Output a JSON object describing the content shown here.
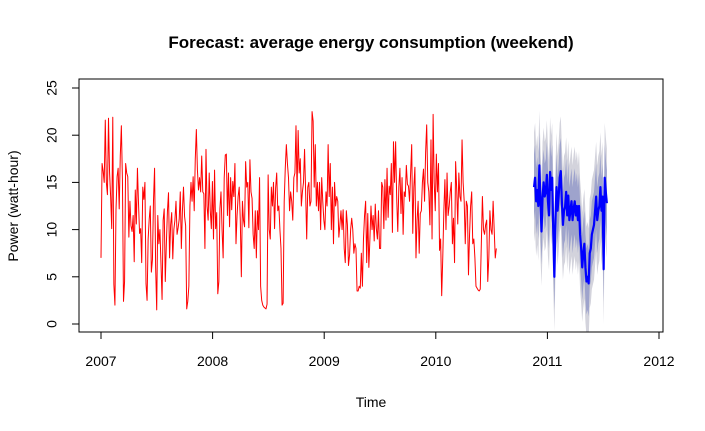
{
  "chart_data": {
    "type": "line",
    "title": "Forecast: average energy consumption (weekend)",
    "xlabel": "Time",
    "ylabel": "Power (watt-hour)",
    "xlim": [
      2007,
      2012
    ],
    "ylim": [
      0,
      25
    ],
    "x_ticks": [
      2007,
      2008,
      2009,
      2010,
      2011,
      2012
    ],
    "y_ticks": [
      0,
      5,
      10,
      15,
      20,
      25
    ],
    "grid": false,
    "legend": "none",
    "colors": {
      "history": "#ff0000",
      "forecast": "#0000ff",
      "band80": "#9ea3cc",
      "band95": "#d3d3dc"
    },
    "series": [
      {
        "role": "history",
        "x_start": 2007.0,
        "step": 0.0096,
        "values": [
          7.0,
          17.0,
          16.2,
          15.0,
          21.6,
          15.0,
          13.7,
          21.8,
          16.0,
          13.5,
          10.1,
          21.9,
          4.2,
          2.0,
          12.1,
          15.6,
          16.5,
          12.2,
          17.8,
          21.0,
          15.2,
          2.4,
          4.5,
          17.0,
          16.0,
          15.6,
          9.2,
          13.0,
          10.4,
          9.8,
          11.5,
          6.6,
          14.2,
          10.6,
          16.5,
          12.8,
          9.6,
          10.1,
          6.5,
          14.5,
          13.2,
          15.0,
          4.3,
          2.5,
          9.0,
          11.1,
          12.5,
          5.5,
          6.8,
          13.1,
          16.5,
          6.0,
          1.5,
          11.5,
          8.5,
          10.0,
          6.3,
          2.6,
          11.0,
          12.2,
          4.5,
          8.5,
          11.9,
          13.9,
          7.0,
          10.5,
          11.8,
          6.9,
          10.0,
          11.0,
          13.0,
          9.5,
          10.2,
          11.1,
          14.0,
          8.0,
          12.0,
          14.5,
          11.4,
          10.4,
          1.6,
          2.4,
          4.0,
          12.5,
          15.0,
          13.0,
          15.6,
          12.0,
          17.5,
          20.6,
          16.3,
          14.2,
          15.5,
          14.0,
          17.8,
          14.0,
          13.8,
          8.0,
          18.5,
          12.5,
          11.0,
          16.0,
          12.0,
          10.1,
          15.1,
          9.0,
          16.3,
          10.1,
          11.8,
          3.2,
          4.5,
          12.2,
          14.0,
          10.0,
          7.0,
          15.5,
          17.9,
          18.0,
          11.5,
          16.0,
          10.3,
          15.5,
          12.1,
          15.1,
          13.5,
          17.0,
          8.5,
          11.5,
          13.5,
          14.5,
          11.0,
          5.0,
          13.0,
          11.0,
          10.3,
          17.2,
          14.5,
          15.0,
          10.2,
          17.4,
          14.0,
          13.3,
          9.5,
          8.0,
          12.0,
          7.0,
          12.0,
          10.0,
          15.5,
          4.0,
          2.5,
          2.0,
          1.8,
          1.7,
          1.6,
          2.1,
          15.8,
          10.0,
          9.0,
          14.5,
          12.5,
          15.0,
          10.1,
          14.4,
          16.0,
          12.0,
          12.5,
          10.0,
          8.0,
          2.0,
          2.2,
          13.0,
          16.5,
          19.0,
          17.0,
          15.5,
          12.0,
          14.0,
          13.0,
          11.0,
          15.5,
          16.0,
          21.0,
          14.0,
          20.5,
          16.0,
          17.5,
          12.5,
          14.0,
          15.0,
          18.5,
          14.0,
          9.0,
          14.5,
          15.0,
          12.5,
          13.0,
          22.5,
          21.5,
          14.5,
          19.0,
          12.5,
          15.0,
          12.0,
          15.0,
          10.0,
          15.5,
          13.0,
          11.0,
          10.0,
          14.0,
          12.5,
          19.0,
          13.5,
          17.0,
          10.0,
          14.5,
          8.5,
          15.0,
          12.5,
          13.5,
          13.0,
          9.2,
          10.5,
          12.0,
          10.0,
          12.1,
          8.0,
          6.5,
          12.0,
          10.5,
          6.2,
          7.3,
          10.0,
          11.2,
          10.0,
          7.5,
          8.5,
          8.0,
          3.5,
          3.5,
          4.0,
          3.8,
          7.5,
          4.0,
          9.0,
          11.5,
          13.0,
          6.5,
          11.7,
          6.0,
          9.0,
          12.5,
          10.0,
          11.5,
          8.8,
          12.7,
          10.1,
          9.0,
          12.0,
          8.0,
          8.0,
          15.0,
          14.5,
          10.1,
          15.3,
          11.0,
          16.5,
          11.3,
          14.6,
          13.7,
          17.0,
          9.7,
          19.3,
          15.0,
          19.3,
          13.3,
          9.8,
          14.5,
          16.5,
          11.7,
          15.5,
          9.5,
          14.0,
          13.5,
          16.8,
          14.8,
          14.6,
          13.0,
          16.0,
          19.0,
          9.6,
          14.5,
          16.6,
          7.0,
          11.0,
          13.0,
          7.5,
          11.7,
          12.0,
          15.0,
          16.4,
          13.0,
          18.2,
          21.1,
          15.0,
          14.0,
          10.5,
          19.5,
          9.0,
          22.2,
          15.0,
          12.0,
          18.0,
          14.0,
          17.0,
          7.8,
          9.0,
          3.0,
          7.0,
          12.0,
          15.3,
          10.0,
          16.0,
          11.5,
          12.5,
          14.0,
          15.0,
          8.5,
          11.2,
          6.5,
          17.2,
          14.3,
          10.6,
          16.0,
          13.5,
          13.0,
          19.5,
          15.0,
          13.0,
          8.5,
          13.0,
          12.5,
          5.2,
          9.5,
          12.5,
          14.0,
          8.5,
          9.0,
          7.0,
          4.0,
          3.8,
          3.6,
          3.5,
          3.7,
          8.5,
          13.5,
          10.0,
          9.5,
          10.5,
          11.0,
          4.5,
          7.0,
          12.0,
          10.0,
          9.5,
          13.0,
          10.0,
          7.0,
          8.0
        ],
        "name": ""
      },
      {
        "role": "forecast",
        "x_start": 2010.88,
        "step": 0.0096,
        "values": [
          14.5,
          15.5,
          13.0,
          14.2,
          12.5,
          16.8,
          13.0,
          9.8,
          13.5,
          15.0,
          13.5,
          14.0,
          15.8,
          13.0,
          11.5,
          16.1,
          14.2,
          15.5,
          9.5,
          5.0,
          11.0,
          14.5,
          12.0,
          13.5,
          15.5,
          16.2,
          13.0,
          10.5,
          12.0,
          12.4,
          14.0,
          11.5,
          13.6,
          11.0,
          12.0,
          13.0,
          11.0,
          12.2,
          13.0,
          11.5,
          12.5,
          11.0,
          12.5,
          9.5,
          8.0,
          6.0,
          7.5,
          8.5,
          6.0,
          4.5,
          5.0,
          4.3,
          7.5,
          8.0,
          9.5,
          10.0,
          10.5,
          12.0,
          13.5,
          11.0,
          12.0,
          12.5,
          14.5,
          12.0,
          13.5,
          5.8,
          15.5,
          14.0,
          12.8
        ],
        "name": ""
      }
    ],
    "bands": {
      "x_start": 2010.88,
      "step": 0.0096,
      "hw80": 3.5,
      "hw95": 5.8
    }
  }
}
